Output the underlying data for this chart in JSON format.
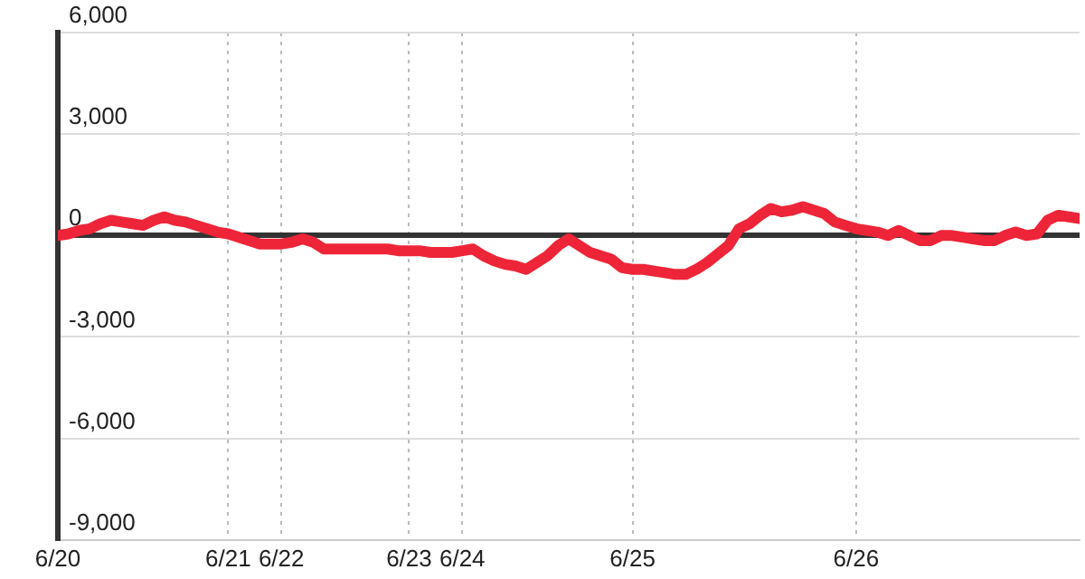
{
  "chart_data": {
    "type": "line",
    "categories": [
      "6/20",
      null,
      null,
      null,
      null,
      null,
      null,
      null,
      null,
      null,
      null,
      null,
      null,
      null,
      null,
      null,
      "6/21",
      null,
      null,
      null,
      null,
      "6/22",
      null,
      null,
      null,
      null,
      null,
      null,
      null,
      null,
      null,
      null,
      null,
      "6/23",
      null,
      null,
      null,
      null,
      "6/24",
      null,
      null,
      null,
      null,
      null,
      null,
      null,
      null,
      null,
      null,
      null,
      null,
      null,
      null,
      null,
      "6/25",
      null,
      null,
      null,
      null,
      null,
      null,
      null,
      null,
      null,
      null,
      null,
      null,
      null,
      null,
      null,
      null,
      null,
      null,
      null,
      null,
      "6/26",
      null,
      null,
      null,
      null,
      null,
      null,
      null,
      null,
      null,
      null,
      null,
      null,
      null,
      null,
      null,
      null,
      null,
      null,
      null,
      null,
      null
    ],
    "series": [
      {
        "color": "#ee2538",
        "values": [
          0,
          50,
          150,
          200,
          350,
          450,
          400,
          350,
          300,
          450,
          550,
          450,
          400,
          300,
          200,
          100,
          50,
          -50,
          -150,
          -250,
          -250,
          -250,
          -200,
          -100,
          -200,
          -400,
          -400,
          -400,
          -400,
          -400,
          -400,
          -400,
          -450,
          -450,
          -450,
          -500,
          -500,
          -500,
          -450,
          -400,
          -600,
          -750,
          -850,
          -900,
          -1000,
          -800,
          -600,
          -300,
          -100,
          -300,
          -500,
          -600,
          -700,
          -950,
          -1000,
          -1000,
          -1050,
          -1100,
          -1150,
          -1150,
          -1000,
          -800,
          -550,
          -300,
          200,
          350,
          600,
          800,
          700,
          750,
          850,
          750,
          650,
          400,
          300,
          200,
          150,
          100,
          0,
          150,
          0,
          -150,
          -150,
          0,
          0,
          -50,
          -100,
          -150,
          -150,
          0,
          100,
          0,
          50,
          450,
          600,
          550,
          500
        ]
      }
    ],
    "ylim": [
      -9000,
      6000
    ],
    "yticks": [
      {
        "value": -9000,
        "label": "-9,000"
      },
      {
        "value": -6000,
        "label": "-6,000"
      },
      {
        "value": -3000,
        "label": "-3,000"
      },
      0,
      {
        "value": 3000,
        "label": "3,000"
      },
      {
        "value": 6000,
        "label": "6,000"
      }
    ],
    "grid": true,
    "marker": "none",
    "line_style": "solid"
  }
}
